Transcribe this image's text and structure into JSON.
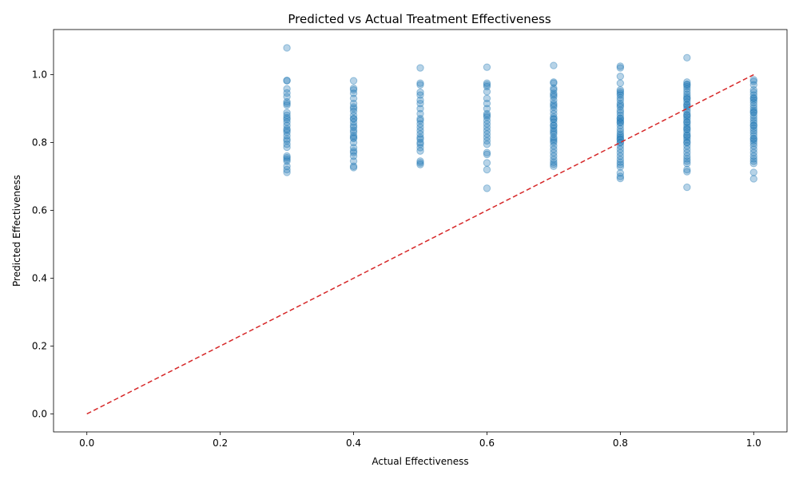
{
  "chart_data": {
    "type": "scatter",
    "title": "Predicted vs Actual Treatment Effectiveness",
    "xlabel": "Actual Effectiveness",
    "ylabel": "Predicted Effectiveness",
    "xlim": [
      -0.05,
      1.05
    ],
    "ylim": [
      -0.053,
      1.133
    ],
    "x_ticks": [
      "0.0",
      "0.2",
      "0.4",
      "0.6",
      "0.8",
      "1.0"
    ],
    "y_ticks": [
      "0.0",
      "0.2",
      "0.4",
      "0.6",
      "0.8",
      "1.0"
    ],
    "grid": false,
    "legend": "none",
    "colors": {
      "points": "#1f77b4",
      "reference_line": "#d62728"
    },
    "reference_line": {
      "style": "dashed",
      "x": [
        0.0,
        1.0
      ],
      "y": [
        0.0,
        1.0
      ]
    },
    "series": [
      {
        "x": [
          0.3,
          0.3,
          0.3,
          0.3,
          0.3,
          0.3,
          0.3,
          0.3,
          0.3,
          0.3,
          0.3,
          0.3,
          0.3,
          0.3,
          0.3,
          0.3,
          0.3,
          0.3,
          0.3,
          0.3,
          0.3,
          0.3,
          0.3,
          0.3,
          0.3,
          0.3,
          0.3,
          0.3,
          0.3,
          0.3,
          0.4,
          0.4,
          0.4,
          0.4,
          0.4,
          0.4,
          0.4,
          0.4,
          0.4,
          0.4,
          0.4,
          0.4,
          0.4,
          0.4,
          0.4,
          0.4,
          0.4,
          0.4,
          0.4,
          0.4,
          0.4,
          0.4,
          0.4,
          0.4,
          0.4,
          0.4,
          0.4,
          0.4,
          0.5,
          0.5,
          0.5,
          0.5,
          0.5,
          0.5,
          0.5,
          0.5,
          0.5,
          0.5,
          0.5,
          0.5,
          0.5,
          0.5,
          0.5,
          0.5,
          0.5,
          0.5,
          0.5,
          0.5,
          0.5,
          0.5,
          0.5,
          0.5,
          0.6,
          0.6,
          0.6,
          0.6,
          0.6,
          0.6,
          0.6,
          0.6,
          0.6,
          0.6,
          0.6,
          0.6,
          0.6,
          0.6,
          0.6,
          0.6,
          0.6,
          0.6,
          0.6,
          0.6,
          0.6,
          0.6,
          0.6,
          0.6,
          0.7,
          0.7,
          0.7,
          0.7,
          0.7,
          0.7,
          0.7,
          0.7,
          0.7,
          0.7,
          0.7,
          0.7,
          0.7,
          0.7,
          0.7,
          0.7,
          0.7,
          0.7,
          0.7,
          0.7,
          0.7,
          0.7,
          0.7,
          0.7,
          0.7,
          0.7,
          0.7,
          0.7,
          0.7,
          0.7,
          0.7,
          0.7,
          0.7,
          0.7,
          0.7,
          0.7,
          0.8,
          0.8,
          0.8,
          0.8,
          0.8,
          0.8,
          0.8,
          0.8,
          0.8,
          0.8,
          0.8,
          0.8,
          0.8,
          0.8,
          0.8,
          0.8,
          0.8,
          0.8,
          0.8,
          0.8,
          0.8,
          0.8,
          0.8,
          0.8,
          0.8,
          0.8,
          0.8,
          0.8,
          0.8,
          0.8,
          0.8,
          0.8,
          0.8,
          0.8,
          0.8,
          0.8,
          0.8,
          0.8,
          0.8,
          0.8,
          0.8,
          0.8,
          0.9,
          0.9,
          0.9,
          0.9,
          0.9,
          0.9,
          0.9,
          0.9,
          0.9,
          0.9,
          0.9,
          0.9,
          0.9,
          0.9,
          0.9,
          0.9,
          0.9,
          0.9,
          0.9,
          0.9,
          0.9,
          0.9,
          0.9,
          0.9,
          0.9,
          0.9,
          0.9,
          0.9,
          0.9,
          0.9,
          0.9,
          0.9,
          0.9,
          0.9,
          0.9,
          0.9,
          0.9,
          0.9,
          0.9,
          0.9,
          0.9,
          0.9,
          0.9,
          0.9,
          1.0,
          1.0,
          1.0,
          1.0,
          1.0,
          1.0,
          1.0,
          1.0,
          1.0,
          1.0,
          1.0,
          1.0,
          1.0,
          1.0,
          1.0,
          1.0,
          1.0,
          1.0,
          1.0,
          1.0,
          1.0,
          1.0,
          1.0,
          1.0,
          1.0,
          1.0,
          1.0,
          1.0,
          1.0,
          1.0,
          1.0,
          1.0,
          1.0,
          1.0,
          1.0,
          1.0,
          1.0,
          1.0
        ],
        "y": [
          1.079,
          0.983,
          0.982,
          0.958,
          0.946,
          0.935,
          0.92,
          0.915,
          0.91,
          0.888,
          0.88,
          0.873,
          0.868,
          0.86,
          0.85,
          0.836,
          0.83,
          0.82,
          0.81,
          0.805,
          0.795,
          0.786,
          0.76,
          0.755,
          0.75,
          0.745,
          0.73,
          0.72,
          0.712,
          0.84,
          0.982,
          0.96,
          0.955,
          0.945,
          0.93,
          0.915,
          0.905,
          0.892,
          0.88,
          0.87,
          0.86,
          0.85,
          0.845,
          0.836,
          0.83,
          0.82,
          0.812,
          0.8,
          0.785,
          0.775,
          0.77,
          0.76,
          0.745,
          0.73,
          0.726,
          0.9,
          0.87,
          0.815,
          1.02,
          0.975,
          0.97,
          0.948,
          0.94,
          0.925,
          0.915,
          0.9,
          0.885,
          0.87,
          0.865,
          0.855,
          0.845,
          0.835,
          0.825,
          0.815,
          0.81,
          0.795,
          0.785,
          0.775,
          0.745,
          0.74,
          0.735,
          0.8,
          1.022,
          0.975,
          0.97,
          0.965,
          0.95,
          0.93,
          0.915,
          0.9,
          0.885,
          0.875,
          0.865,
          0.855,
          0.845,
          0.835,
          0.825,
          0.815,
          0.805,
          0.795,
          0.77,
          0.765,
          0.74,
          0.72,
          0.665,
          0.88,
          1.027,
          0.978,
          0.975,
          0.955,
          0.945,
          0.94,
          0.935,
          0.925,
          0.915,
          0.905,
          0.895,
          0.885,
          0.875,
          0.868,
          0.86,
          0.85,
          0.842,
          0.835,
          0.825,
          0.815,
          0.805,
          0.8,
          0.79,
          0.78,
          0.77,
          0.76,
          0.75,
          0.742,
          0.736,
          0.73,
          0.96,
          0.91,
          0.87,
          0.83,
          0.81,
          0.85,
          1.025,
          1.02,
          0.995,
          0.975,
          0.955,
          0.945,
          0.94,
          0.932,
          0.925,
          0.915,
          0.905,
          0.895,
          0.888,
          0.88,
          0.872,
          0.865,
          0.858,
          0.85,
          0.84,
          0.832,
          0.825,
          0.815,
          0.808,
          0.8,
          0.79,
          0.78,
          0.77,
          0.76,
          0.75,
          0.742,
          0.735,
          0.728,
          0.71,
          0.7,
          0.694,
          0.95,
          0.91,
          0.87,
          0.86,
          0.82,
          0.81,
          0.8,
          1.05,
          0.978,
          0.972,
          0.965,
          0.958,
          0.95,
          0.942,
          0.935,
          0.928,
          0.92,
          0.912,
          0.905,
          0.898,
          0.89,
          0.882,
          0.875,
          0.868,
          0.86,
          0.852,
          0.845,
          0.838,
          0.83,
          0.822,
          0.815,
          0.808,
          0.8,
          0.79,
          0.78,
          0.77,
          0.76,
          0.752,
          0.745,
          0.738,
          0.72,
          0.714,
          0.668,
          0.97,
          0.93,
          0.91,
          0.88,
          0.86,
          0.84,
          0.82,
          0.8,
          0.985,
          0.97,
          0.955,
          0.948,
          0.94,
          0.932,
          0.925,
          0.918,
          0.91,
          0.902,
          0.895,
          0.888,
          0.88,
          0.872,
          0.865,
          0.858,
          0.85,
          0.842,
          0.835,
          0.828,
          0.82,
          0.812,
          0.805,
          0.798,
          0.79,
          0.78,
          0.77,
          0.76,
          0.752,
          0.745,
          0.738,
          0.712,
          0.693,
          0.98,
          0.93,
          0.89,
          0.85,
          0.81
        ]
      }
    ]
  }
}
